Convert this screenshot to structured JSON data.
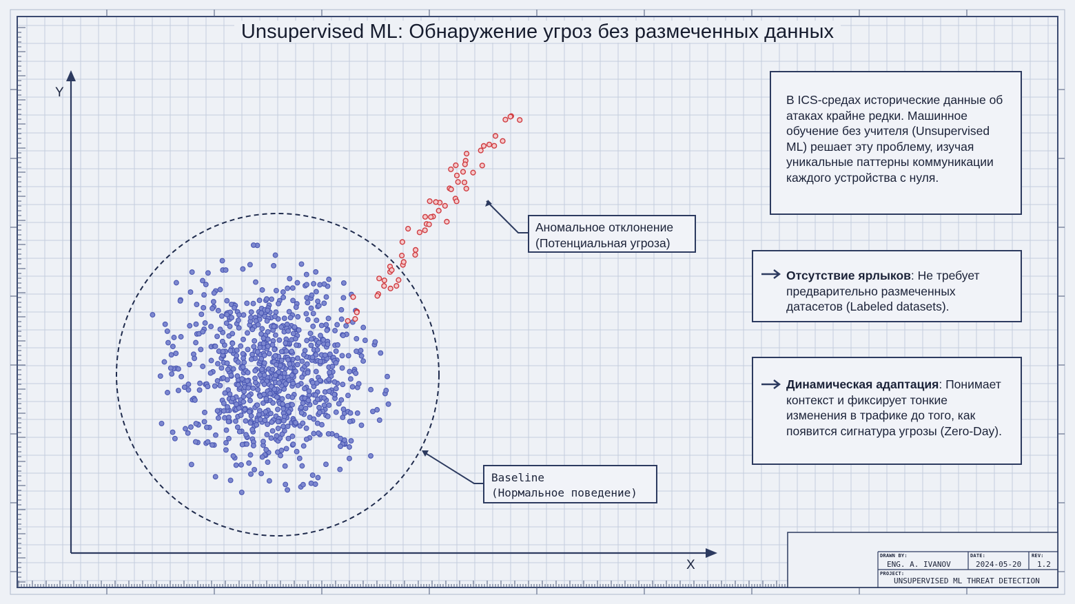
{
  "title": "Unsupervised ML: Обнаружение угроз без размеченных данных",
  "axes": {
    "x_label": "X",
    "y_label": "Y"
  },
  "info_panel": {
    "text": "В ICS-средах исторические данные об атаках крайне редки. Машинное обучение без учителя (Unsupervised ML) решает эту проблему, изучая уникальные паттерны коммуникации каждого устройства с нуля."
  },
  "feature_labels": {
    "heading": "Отсутствие ярлыков",
    "text": ": Не требует предварительно размеченных датасетов (Labeled datasets)."
  },
  "feature_adaptation": {
    "heading": "Динамическая адаптация",
    "text": ": Понимает контекст и фиксирует тонкие изменения в трафике до того, как появится сигнатура угрозы (Zero-Day)."
  },
  "callouts": {
    "anomaly": {
      "line1": "Аномальное отклонение",
      "line2": "(Потенциальная угроза)"
    },
    "baseline": {
      "line1": "Baseline",
      "line2": "(Нормальное поведение)"
    }
  },
  "title_block": {
    "drawn_by_label": "DRAWN BY:",
    "drawn_by": "ENG. A. IVANOV",
    "date_label": "DATE:",
    "date": "2024-05-20",
    "rev_label": "REV:",
    "rev": "1.2",
    "project_label": "PROJECT:",
    "project": "UNSUPERVISED ML THREAT DETECTION"
  },
  "colors": {
    "background": "#eef1f6",
    "grid": "#c4cddd",
    "ink": "#2c3a5f",
    "normal_point": "#4a57b3",
    "anomaly_point": "#cf3a3f"
  }
}
